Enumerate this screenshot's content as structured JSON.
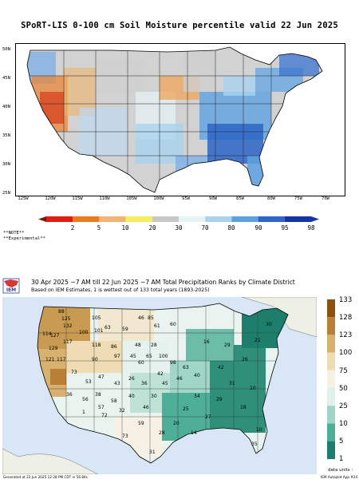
{
  "soil_moisture_map": {
    "title": "SPoRT-LIS 0-100 cm Soil Moisture percentile valid 22 Jun 2025",
    "lat_labels": [
      "50N",
      "45N",
      "40N",
      "35N",
      "30N",
      "25N"
    ],
    "lon_labels": [
      "125W",
      "120W",
      "115W",
      "110W",
      "105W",
      "100W",
      "95W",
      "90W",
      "85W",
      "80W",
      "75W",
      "70W"
    ],
    "colorbar": {
      "labels": [
        "2",
        "5",
        "10",
        "20",
        "30",
        "70",
        "80",
        "90",
        "95",
        "98"
      ],
      "colors": [
        "#7a1a0a",
        "#e01c10",
        "#e87b1e",
        "#f2b474",
        "#f5ef60",
        "#c8c8c8",
        "#e6f4f6",
        "#a9d3ef",
        "#5ea1e0",
        "#2d65c8",
        "#1235a8"
      ]
    },
    "note_lines": [
      "**NOTE**",
      "**Experimental**"
    ]
  },
  "precip_rank_map": {
    "title": "30 Apr 2025 ~7 AM till 22 Jun 2025 ~7 AM Total Precipitation Ranks by Climate District",
    "subtitle": "Based on IEM Estimates, 1 is wettest out of 133 total years (1893-2025)",
    "logo_text": "IEM",
    "legend": {
      "labels": [
        "133",
        "128",
        "123",
        "100",
        "75",
        "50",
        "25",
        "10",
        "5",
        "1"
      ],
      "colors": [
        "#8c520e",
        "#b97f38",
        "#d9b16e",
        "#efdcb4",
        "#f6f1e4",
        "#e0f0ec",
        "#9fd6c8",
        "#4fae98",
        "#1d7f6b",
        "#0c5a48"
      ]
    },
    "units_label": "data units :",
    "generated_text": "Generated at 22 Jun 2025 12:28 PM CDT in 56.84s",
    "app_text": "IEM Autoplot App #24",
    "district_ranks": [
      "88",
      "125",
      "132",
      "105",
      "63",
      "59",
      "46",
      "85",
      "61",
      "60",
      "101",
      "100",
      "114",
      "127",
      "117",
      "129",
      "118",
      "86",
      "48",
      "28",
      "121",
      "117",
      "90",
      "97",
      "45",
      "60",
      "65",
      "100",
      "98",
      "63",
      "73",
      "53",
      "47",
      "43",
      "26",
      "36",
      "42",
      "45",
      "46",
      "40",
      "36",
      "56",
      "38",
      "58",
      "40",
      "32",
      "72",
      "30",
      "46",
      "57",
      "73",
      "59",
      "31",
      "28",
      "1",
      "20",
      "25",
      "34",
      "27",
      "29",
      "31",
      "42",
      "18",
      "10",
      "26",
      "21",
      "30",
      "16",
      "29",
      "10",
      "35",
      "14"
    ]
  }
}
